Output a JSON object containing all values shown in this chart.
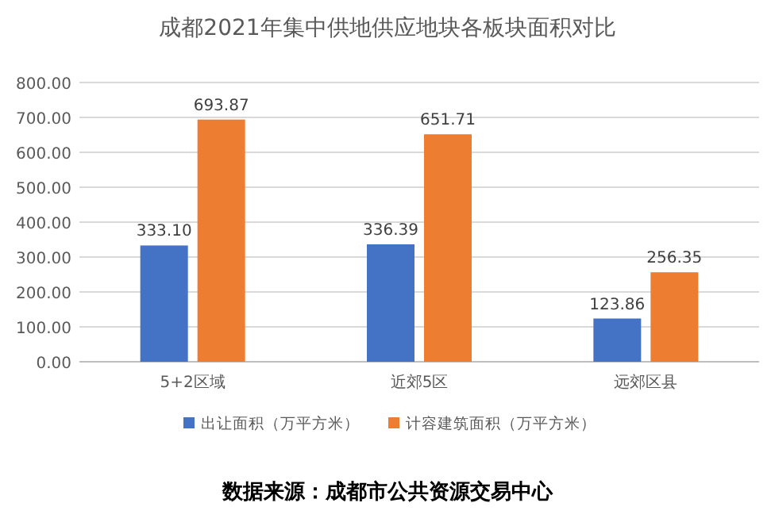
{
  "chart_data": {
    "type": "bar",
    "title": "成都2021年集中供地供应地块各板块面积对比",
    "categories": [
      "5+2区域",
      "近郊5区",
      "远郊区县"
    ],
    "series": [
      {
        "name": "出让面积（万平方米）",
        "color": "#4472c4",
        "values": [
          333.1,
          336.39,
          123.86
        ],
        "value_labels": [
          "333.10",
          "336.39",
          "123.86"
        ]
      },
      {
        "name": "计容建筑面积（万平方米）",
        "color": "#ed7d31",
        "values": [
          693.87,
          651.71,
          256.35
        ],
        "value_labels": [
          "693.87",
          "651.71",
          "256.35"
        ]
      }
    ],
    "ylim": [
      0,
      800
    ],
    "yticks": [
      {
        "value": 0,
        "label": "0.00"
      },
      {
        "value": 100,
        "label": "100.00"
      },
      {
        "value": 200,
        "label": "200.00"
      },
      {
        "value": 300,
        "label": "300.00"
      },
      {
        "value": 400,
        "label": "400.00"
      },
      {
        "value": 500,
        "label": "500.00"
      },
      {
        "value": 600,
        "label": "600.00"
      },
      {
        "value": 700,
        "label": "700.00"
      },
      {
        "value": 800,
        "label": "800.00"
      }
    ],
    "grid": "y",
    "legend": "bottom",
    "annotations": [
      "数据来源：成都市公共资源交易中心"
    ]
  }
}
